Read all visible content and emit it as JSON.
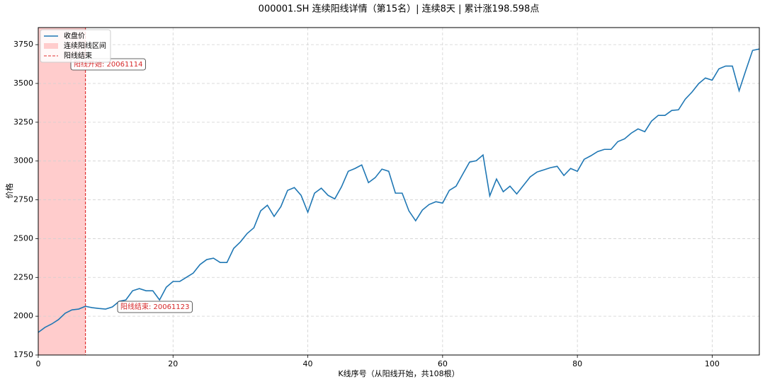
{
  "chart_data": {
    "type": "line",
    "title": "000001.SH 连续阳线详情（第15名）| 连续8天 | 累计涨198.598点",
    "xlabel": "K线序号（从阳线开始，共108根）",
    "ylabel": "价格",
    "x": [
      0,
      1,
      2,
      3,
      4,
      5,
      6,
      7,
      8,
      9,
      10,
      11,
      12,
      13,
      14,
      15,
      16,
      17,
      18,
      19,
      20,
      21,
      22,
      23,
      24,
      25,
      26,
      27,
      28,
      29,
      30,
      31,
      32,
      33,
      34,
      35,
      36,
      37,
      38,
      39,
      40,
      41,
      42,
      43,
      44,
      45,
      46,
      47,
      48,
      49,
      50,
      51,
      52,
      53,
      54,
      55,
      56,
      57,
      58,
      59,
      60,
      61,
      62,
      63,
      64,
      65,
      66,
      67,
      68,
      69,
      70,
      71,
      72,
      73,
      74,
      75,
      76,
      77,
      78,
      79,
      80,
      81,
      82,
      83,
      84,
      85,
      86,
      87,
      88,
      89,
      90,
      91,
      92,
      93,
      94,
      95,
      96,
      97,
      98,
      99,
      100,
      101,
      102,
      103,
      104,
      105,
      106,
      107
    ],
    "series": [
      {
        "name": "收盘价",
        "color": "#1f77b4",
        "values": [
          1896,
          1928,
          1950,
          1978,
          2019,
          2041,
          2046,
          2064,
          2055,
          2050,
          2046,
          2060,
          2096,
          2105,
          2164,
          2178,
          2164,
          2164,
          2105,
          2187,
          2224,
          2224,
          2251,
          2278,
          2333,
          2365,
          2374,
          2346,
          2346,
          2437,
          2479,
          2533,
          2570,
          2679,
          2715,
          2643,
          2706,
          2811,
          2829,
          2779,
          2670,
          2793,
          2825,
          2779,
          2756,
          2834,
          2934,
          2952,
          2975,
          2861,
          2893,
          2948,
          2934,
          2793,
          2793,
          2679,
          2615,
          2684,
          2720,
          2738,
          2729,
          2811,
          2838,
          2916,
          2993,
          3002,
          3039,
          2775,
          2884,
          2802,
          2838,
          2788,
          2843,
          2898,
          2929,
          2943,
          2957,
          2966,
          2907,
          2952,
          2934,
          3011,
          3034,
          3061,
          3075,
          3075,
          3125,
          3143,
          3180,
          3207,
          3189,
          3257,
          3294,
          3294,
          3326,
          3330,
          3398,
          3444,
          3499,
          3535,
          3521,
          3594,
          3612,
          3612,
          3453,
          3585,
          3713,
          3722
        ]
      }
    ],
    "span": {
      "name": "连续阳线区间",
      "range": [
        0,
        7
      ],
      "color": "#ffcccc"
    },
    "vline": {
      "name": "阳线结束",
      "x": 7,
      "color": "#e03030"
    },
    "annotations": [
      "阳线开始: 20061114",
      "阳线结束: 20061123"
    ],
    "xlim": [
      0,
      107
    ],
    "ylim": [
      1750,
      3860
    ],
    "xticks": [
      0,
      20,
      40,
      60,
      80,
      100
    ],
    "yticks": [
      1750,
      2000,
      2250,
      2500,
      2750,
      3000,
      3250,
      3500,
      3750
    ],
    "grid": true,
    "legend": "upper left"
  }
}
